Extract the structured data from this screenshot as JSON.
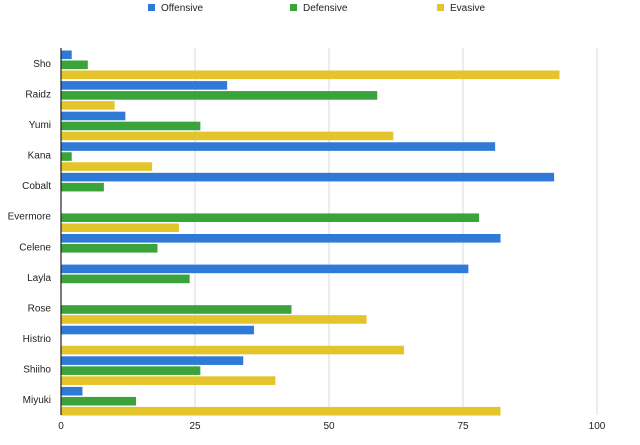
{
  "chart_data": {
    "type": "bar",
    "orientation": "horizontal",
    "title": "",
    "xlabel": "",
    "ylabel": "",
    "categories": [
      "Sho",
      "Raidz",
      "Yumi",
      "Kana",
      "Cobalt",
      "Evermore",
      "Celene",
      "Layla",
      "Rose",
      "Histrio",
      "Shiiho",
      "Miyuki"
    ],
    "series": [
      {
        "name": "Offensive",
        "color": "#2e7ad6",
        "values": [
          2,
          31,
          12,
          81,
          92,
          0,
          82,
          76,
          0,
          36,
          34,
          4
        ]
      },
      {
        "name": "Defensive",
        "color": "#3aa33a",
        "values": [
          5,
          59,
          26,
          2,
          8,
          78,
          18,
          24,
          43,
          0,
          26,
          14
        ]
      },
      {
        "name": "Evasive",
        "color": "#e3c52b",
        "values": [
          93,
          10,
          62,
          17,
          0,
          22,
          0,
          0,
          57,
          64,
          40,
          82
        ]
      }
    ],
    "xlim": [
      0,
      100
    ],
    "xticks": [
      0,
      25,
      50,
      75,
      100
    ],
    "grid": true,
    "legend_position": "top-center"
  }
}
